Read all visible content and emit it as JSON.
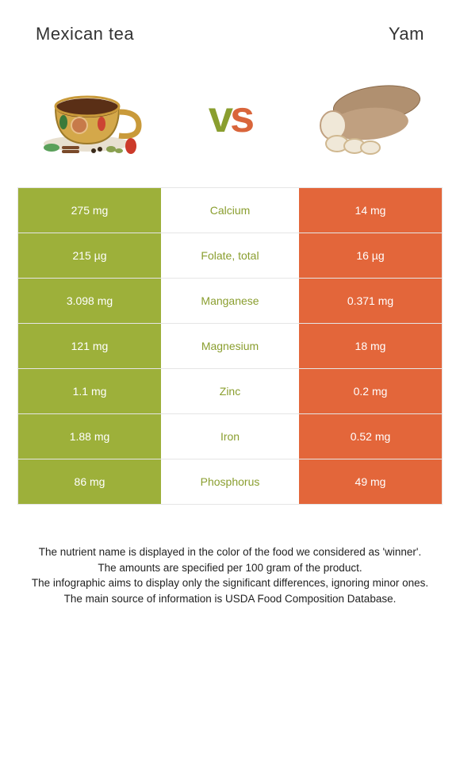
{
  "header": {
    "left_title": "Mexican tea",
    "right_title": "Yam"
  },
  "vs": {
    "v": "v",
    "s": "s"
  },
  "colors": {
    "left_bar": "#9db03a",
    "right_bar": "#e3663a",
    "nutrient_left_win": "#8a9e2f",
    "nutrient_right_win": "#d9653b",
    "row_border": "#e5e5e5"
  },
  "rows": [
    {
      "left": "275 mg",
      "nutrient": "Calcium",
      "right": "14 mg",
      "winner": "left"
    },
    {
      "left": "215 µg",
      "nutrient": "Folate, total",
      "right": "16 µg",
      "winner": "left"
    },
    {
      "left": "3.098 mg",
      "nutrient": "Manganese",
      "right": "0.371 mg",
      "winner": "left"
    },
    {
      "left": "121 mg",
      "nutrient": "Magnesium",
      "right": "18 mg",
      "winner": "left"
    },
    {
      "left": "1.1 mg",
      "nutrient": "Zinc",
      "right": "0.2 mg",
      "winner": "left"
    },
    {
      "left": "1.88 mg",
      "nutrient": "Iron",
      "right": "0.52 mg",
      "winner": "left"
    },
    {
      "left": "86 mg",
      "nutrient": "Phosphorus",
      "right": "49 mg",
      "winner": "left"
    }
  ],
  "footer": {
    "line1": "The nutrient name is displayed in the color of the food we considered as 'winner'.",
    "line2": "The amounts are specified per 100 gram of the product.",
    "line3": "The infographic aims to display only the significant differences, ignoring minor ones.",
    "line4": "The main source of information is USDA Food Composition Database."
  }
}
